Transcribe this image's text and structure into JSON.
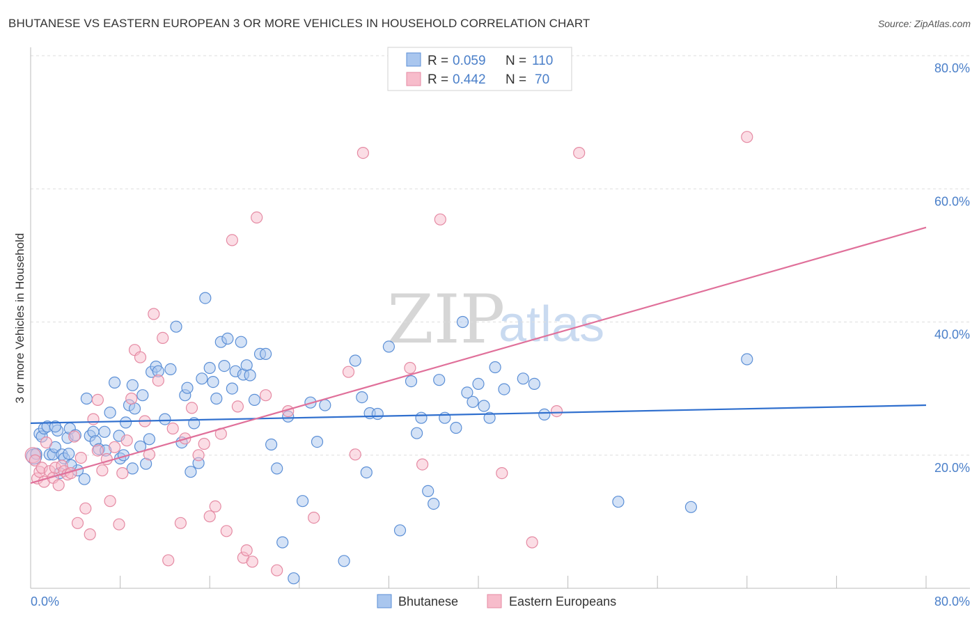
{
  "chart_data": {
    "type": "scatter",
    "title": "BHUTANESE VS EASTERN EUROPEAN 3 OR MORE VEHICLES IN HOUSEHOLD CORRELATION CHART",
    "source": "Source: ZipAtlas.com",
    "ylabel": "3 or more Vehicles in Household",
    "xlim": [
      0,
      80
    ],
    "ylim": [
      0,
      80
    ],
    "y_ticks": [
      {
        "value": 20,
        "label": "20.0%"
      },
      {
        "value": 40,
        "label": "40.0%"
      },
      {
        "value": 60,
        "label": "60.0%"
      },
      {
        "value": 80,
        "label": "80.0%"
      }
    ],
    "x_tick_labels": {
      "min": "0.0%",
      "max": "80.0%"
    },
    "x_minor_ticks": [
      0,
      8,
      16,
      24,
      32,
      40,
      48,
      56,
      64,
      72,
      80
    ],
    "grid": true,
    "legend": {
      "placement": "top-center",
      "entries": [
        {
          "r_label": "R =",
          "r_value": "0.059",
          "n_label": "N =",
          "n_value": "110"
        },
        {
          "r_label": "R =",
          "r_value": "0.442",
          "n_label": "N =",
          "n_value": "70"
        }
      ]
    },
    "series": [
      {
        "name": "Bhutanese",
        "fill": "#a9c6ee",
        "stroke": "#5b8fd6",
        "trend_color": "#2f6fce",
        "trend": {
          "x": [
            0,
            80
          ],
          "y": [
            24.8,
            27.5
          ]
        },
        "points": [
          [
            0.3,
            19.8
          ],
          [
            0.5,
            20.2
          ],
          [
            0.8,
            23.2
          ],
          [
            1.0,
            22.8
          ],
          [
            1.2,
            24.0
          ],
          [
            1.5,
            24.3
          ],
          [
            1.7,
            20.1
          ],
          [
            2.0,
            20.1
          ],
          [
            2.2,
            21.2
          ],
          [
            2.4,
            23.7
          ],
          [
            2.6,
            17.3
          ],
          [
            2.8,
            20.1
          ],
          [
            3.0,
            19.5
          ],
          [
            3.3,
            22.6
          ],
          [
            3.5,
            24.0
          ],
          [
            4.0,
            23.0
          ],
          [
            4.2,
            17.7
          ],
          [
            4.8,
            16.4
          ],
          [
            5.0,
            28.5
          ],
          [
            5.3,
            22.9
          ],
          [
            5.6,
            23.5
          ],
          [
            5.8,
            22.1
          ],
          [
            6.1,
            20.9
          ],
          [
            6.6,
            23.5
          ],
          [
            7.1,
            26.4
          ],
          [
            7.5,
            30.9
          ],
          [
            7.9,
            22.9
          ],
          [
            8.0,
            19.5
          ],
          [
            8.3,
            20.0
          ],
          [
            8.5,
            24.9
          ],
          [
            8.8,
            27.5
          ],
          [
            9.1,
            30.5
          ],
          [
            9.3,
            27.0
          ],
          [
            9.8,
            21.3
          ],
          [
            10.0,
            29.0
          ],
          [
            10.3,
            18.7
          ],
          [
            10.6,
            22.4
          ],
          [
            10.8,
            32.5
          ],
          [
            11.2,
            33.3
          ],
          [
            11.4,
            32.6
          ],
          [
            12.0,
            25.4
          ],
          [
            12.5,
            32.9
          ],
          [
            13.0,
            39.3
          ],
          [
            13.5,
            21.9
          ],
          [
            13.8,
            29.0
          ],
          [
            14.0,
            30.1
          ],
          [
            14.3,
            17.5
          ],
          [
            14.6,
            24.8
          ],
          [
            15.0,
            18.8
          ],
          [
            15.3,
            31.5
          ],
          [
            15.6,
            43.6
          ],
          [
            16.0,
            33.1
          ],
          [
            16.3,
            31.0
          ],
          [
            16.6,
            28.5
          ],
          [
            17.0,
            37.0
          ],
          [
            17.3,
            33.4
          ],
          [
            17.6,
            37.5
          ],
          [
            18.0,
            30.0
          ],
          [
            18.3,
            32.6
          ],
          [
            18.8,
            37.0
          ],
          [
            19.0,
            32.1
          ],
          [
            19.3,
            33.5
          ],
          [
            19.6,
            32.0
          ],
          [
            20.0,
            28.3
          ],
          [
            20.5,
            35.2
          ],
          [
            21.0,
            35.2
          ],
          [
            21.5,
            21.6
          ],
          [
            22.0,
            18.0
          ],
          [
            22.5,
            6.9
          ],
          [
            23.0,
            25.8
          ],
          [
            23.5,
            1.5
          ],
          [
            24.3,
            13.1
          ],
          [
            25.0,
            27.9
          ],
          [
            25.6,
            22.0
          ],
          [
            26.3,
            27.5
          ],
          [
            28.0,
            4.1
          ],
          [
            29.0,
            34.2
          ],
          [
            29.6,
            28.7
          ],
          [
            30.0,
            17.4
          ],
          [
            30.3,
            26.3
          ],
          [
            31.0,
            26.2
          ],
          [
            32.0,
            36.3
          ],
          [
            33.0,
            8.7
          ],
          [
            34.0,
            31.1
          ],
          [
            34.5,
            23.3
          ],
          [
            34.9,
            25.6
          ],
          [
            35.5,
            14.6
          ],
          [
            36.0,
            12.7
          ],
          [
            36.5,
            31.3
          ],
          [
            37.0,
            25.6
          ],
          [
            38.0,
            24.1
          ],
          [
            38.6,
            40.0
          ],
          [
            39.0,
            29.4
          ],
          [
            39.5,
            28.0
          ],
          [
            40.0,
            30.7
          ],
          [
            40.5,
            27.4
          ],
          [
            41.0,
            25.6
          ],
          [
            41.5,
            33.2
          ],
          [
            42.3,
            29.9
          ],
          [
            44.0,
            31.5
          ],
          [
            45.0,
            30.7
          ],
          [
            45.9,
            26.1
          ],
          [
            52.5,
            13.0
          ],
          [
            59.0,
            12.2
          ],
          [
            64.0,
            34.4
          ],
          [
            3.4,
            20.2
          ],
          [
            6.7,
            20.7
          ],
          [
            3.6,
            18.5
          ],
          [
            9.1,
            18.0
          ],
          [
            2.2,
            24.3
          ]
        ]
      },
      {
        "name": "Eastern Europeans",
        "fill": "#f7bccb",
        "stroke": "#e58aa3",
        "trend_color": "#e0709a",
        "trend": {
          "x": [
            0,
            80
          ],
          "y": [
            15.8,
            54.2
          ]
        },
        "points": [
          [
            0.2,
            20.0
          ],
          [
            0.4,
            19.2
          ],
          [
            0.6,
            16.5
          ],
          [
            0.8,
            17.5
          ],
          [
            1.0,
            18.1
          ],
          [
            1.2,
            16.0
          ],
          [
            1.4,
            21.9
          ],
          [
            1.7,
            17.6
          ],
          [
            2.0,
            16.6
          ],
          [
            2.2,
            18.1
          ],
          [
            2.5,
            15.5
          ],
          [
            2.8,
            18.4
          ],
          [
            3.0,
            17.6
          ],
          [
            3.3,
            17.1
          ],
          [
            3.6,
            17.3
          ],
          [
            3.9,
            22.8
          ],
          [
            4.2,
            9.8
          ],
          [
            4.5,
            19.6
          ],
          [
            4.9,
            12.0
          ],
          [
            5.3,
            8.1
          ],
          [
            5.6,
            25.4
          ],
          [
            6.0,
            20.7
          ],
          [
            6.4,
            17.7
          ],
          [
            6.8,
            19.4
          ],
          [
            7.1,
            13.1
          ],
          [
            7.5,
            21.2
          ],
          [
            7.9,
            9.6
          ],
          [
            8.2,
            17.3
          ],
          [
            8.6,
            22.2
          ],
          [
            9.0,
            28.5
          ],
          [
            9.3,
            35.8
          ],
          [
            9.8,
            34.7
          ],
          [
            10.2,
            25.1
          ],
          [
            10.6,
            20.1
          ],
          [
            11.0,
            41.2
          ],
          [
            11.4,
            31.2
          ],
          [
            11.8,
            37.6
          ],
          [
            12.3,
            4.2
          ],
          [
            12.7,
            24.0
          ],
          [
            13.4,
            9.8
          ],
          [
            13.8,
            22.5
          ],
          [
            14.4,
            27.1
          ],
          [
            15.0,
            20.0
          ],
          [
            15.5,
            21.7
          ],
          [
            16.0,
            10.8
          ],
          [
            16.5,
            12.3
          ],
          [
            17.0,
            23.2
          ],
          [
            17.5,
            8.6
          ],
          [
            18.0,
            52.3
          ],
          [
            18.5,
            27.3
          ],
          [
            19.0,
            4.6
          ],
          [
            19.3,
            5.7
          ],
          [
            19.8,
            4.0
          ],
          [
            20.2,
            55.7
          ],
          [
            21.0,
            29.0
          ],
          [
            22.0,
            2.7
          ],
          [
            23.0,
            26.6
          ],
          [
            25.3,
            10.6
          ],
          [
            28.4,
            32.5
          ],
          [
            29.0,
            20.1
          ],
          [
            29.7,
            65.4
          ],
          [
            33.9,
            33.1
          ],
          [
            35.0,
            18.6
          ],
          [
            36.6,
            55.4
          ],
          [
            42.1,
            17.3
          ],
          [
            44.8,
            6.9
          ],
          [
            47.0,
            26.6
          ],
          [
            49.0,
            65.4
          ],
          [
            64.0,
            67.8
          ],
          [
            6.0,
            28.3
          ]
        ]
      }
    ]
  },
  "watermark": {
    "zip": "ZIP",
    "atlas": "atlas"
  },
  "bottom_legend": [
    "Bhutanese",
    "Eastern Europeans"
  ]
}
